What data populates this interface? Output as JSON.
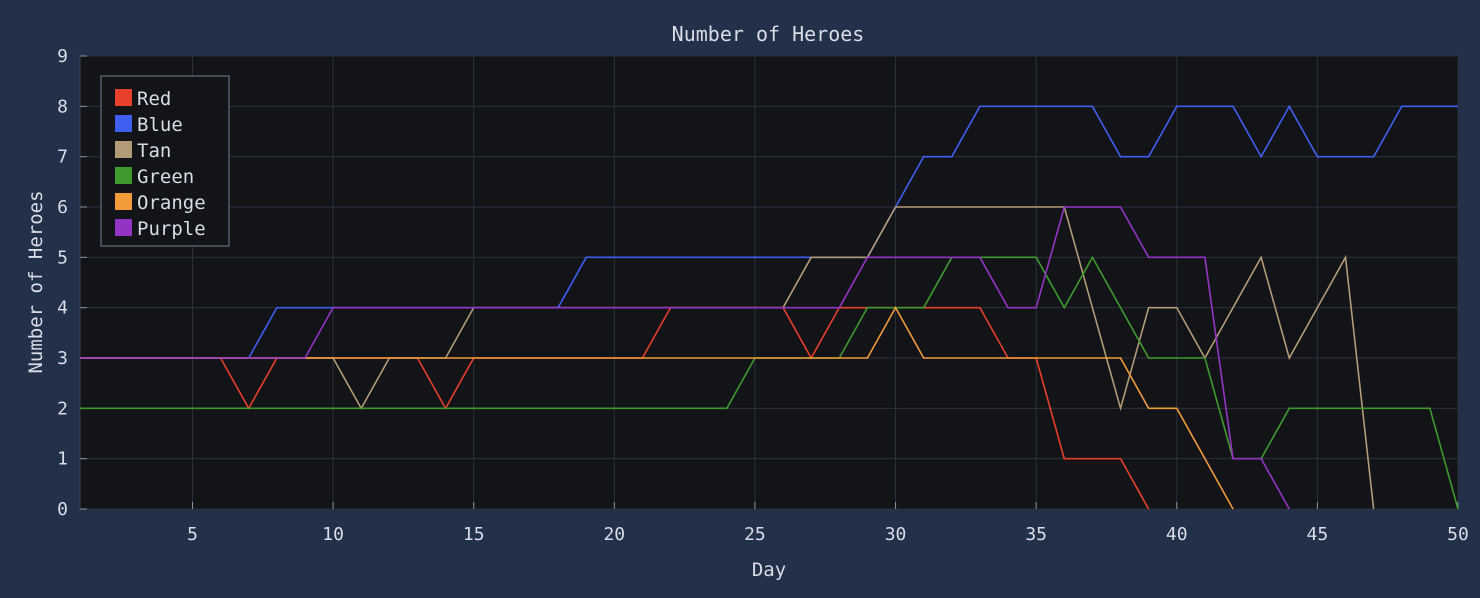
{
  "chart_data": {
    "type": "line",
    "title": "Number of Heroes",
    "xlabel": "Day",
    "ylabel": "Number of Heroes",
    "xlim": [
      1,
      50
    ],
    "ylim": [
      0,
      9
    ],
    "xticks": [
      5,
      10,
      15,
      20,
      25,
      30,
      35,
      40,
      45,
      50
    ],
    "yticks": [
      0,
      1,
      2,
      3,
      4,
      5,
      6,
      7,
      8,
      9
    ],
    "grid": true,
    "legend_position": "top-left",
    "x": [
      1,
      2,
      3,
      4,
      5,
      6,
      7,
      8,
      9,
      10,
      11,
      12,
      13,
      14,
      15,
      16,
      17,
      18,
      19,
      20,
      21,
      22,
      23,
      24,
      25,
      26,
      27,
      28,
      29,
      30,
      31,
      32,
      33,
      34,
      35,
      36,
      37,
      38,
      39,
      40,
      41,
      42,
      43,
      44,
      45,
      46,
      47,
      48,
      49,
      50
    ],
    "series": [
      {
        "name": "Red",
        "color": "#e8402a",
        "values": [
          3,
          3,
          3,
          3,
          3,
          3,
          2,
          3,
          3,
          3,
          3,
          3,
          3,
          2,
          3,
          3,
          3,
          3,
          3,
          3,
          3,
          4,
          4,
          4,
          4,
          4,
          3,
          4,
          4,
          4,
          4,
          4,
          4,
          3,
          3,
          1,
          1,
          1,
          0,
          null,
          null,
          null,
          null,
          null,
          null,
          null,
          null,
          null,
          null,
          null
        ]
      },
      {
        "name": "Blue",
        "color": "#3f5ff0",
        "values": [
          3,
          3,
          3,
          3,
          3,
          3,
          3,
          4,
          4,
          4,
          4,
          4,
          4,
          4,
          4,
          4,
          4,
          4,
          5,
          5,
          5,
          5,
          5,
          5,
          5,
          5,
          5,
          5,
          5,
          6,
          7,
          7,
          8,
          8,
          8,
          8,
          8,
          7,
          7,
          8,
          8,
          8,
          7,
          8,
          7,
          7,
          7,
          8,
          8,
          8
        ]
      },
      {
        "name": "Tan",
        "color": "#b39b77",
        "values": [
          3,
          3,
          3,
          3,
          3,
          3,
          3,
          3,
          3,
          3,
          2,
          3,
          3,
          3,
          4,
          4,
          4,
          4,
          4,
          4,
          4,
          4,
          4,
          4,
          4,
          4,
          5,
          5,
          5,
          6,
          6,
          6,
          6,
          6,
          6,
          6,
          4,
          2,
          4,
          4,
          3,
          4,
          5,
          3,
          4,
          5,
          0,
          null,
          null,
          null
        ]
      },
      {
        "name": "Green",
        "color": "#3f9a2e",
        "values": [
          2,
          2,
          2,
          2,
          2,
          2,
          2,
          2,
          2,
          2,
          2,
          2,
          2,
          2,
          2,
          2,
          2,
          2,
          2,
          2,
          2,
          2,
          2,
          2,
          3,
          3,
          3,
          3,
          4,
          4,
          4,
          5,
          5,
          5,
          5,
          4,
          5,
          4,
          3,
          3,
          3,
          1,
          1,
          2,
          2,
          2,
          2,
          2,
          2,
          0
        ]
      },
      {
        "name": "Orange",
        "color": "#f39a3a",
        "values": [
          3,
          3,
          3,
          3,
          3,
          3,
          3,
          3,
          3,
          3,
          3,
          3,
          3,
          3,
          3,
          3,
          3,
          3,
          3,
          3,
          3,
          3,
          3,
          3,
          3,
          3,
          3,
          3,
          3,
          4,
          3,
          3,
          3,
          3,
          3,
          3,
          3,
          3,
          2,
          2,
          1,
          0,
          null,
          null,
          null,
          null,
          null,
          null,
          null,
          null
        ]
      },
      {
        "name": "Purple",
        "color": "#9434c4",
        "values": [
          3,
          3,
          3,
          3,
          3,
          3,
          3,
          3,
          3,
          4,
          4,
          4,
          4,
          4,
          4,
          4,
          4,
          4,
          4,
          4,
          4,
          4,
          4,
          4,
          4,
          4,
          4,
          4,
          5,
          5,
          5,
          5,
          5,
          4,
          4,
          6,
          6,
          6,
          5,
          5,
          5,
          1,
          1,
          0,
          null,
          null,
          null,
          null,
          null,
          null
        ]
      }
    ]
  }
}
